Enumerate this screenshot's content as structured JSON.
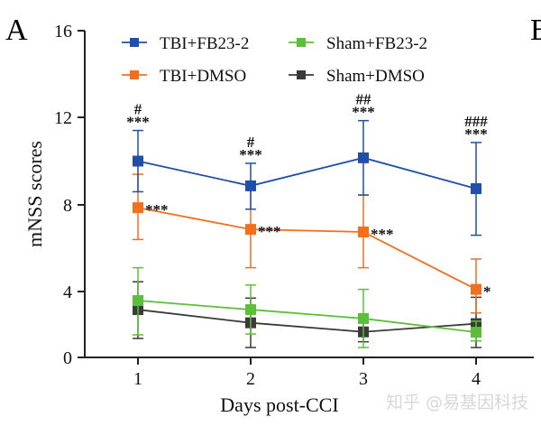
{
  "panel_label": "A",
  "next_panel_label": "B",
  "watermark": "知乎 @易基因科技",
  "chart_data": {
    "type": "line",
    "title": "",
    "xlabel": "Days post-CCI",
    "ylabel": "mNSS scores",
    "x": [
      1,
      2,
      3,
      4
    ],
    "x_tick_labels": [
      "1",
      "2",
      "3",
      "4"
    ],
    "y_ticks": [
      0,
      4,
      8,
      12,
      16
    ],
    "y_tick_labels": [
      "0",
      "4",
      "8",
      "12",
      "16"
    ],
    "ylim": [
      0,
      16
    ],
    "grid": false,
    "legend_placement": "top",
    "series": [
      {
        "name": "TBI+FB23-2",
        "color": "#1f4fa8",
        "values": [
          10.0,
          8.87,
          10.15,
          8.74
        ],
        "err_upper": [
          11.4,
          9.9,
          11.85,
          10.85
        ],
        "err_lower": [
          8.6,
          7.8,
          8.45,
          6.6
        ],
        "annotations": [
          [
            "#",
            "***"
          ],
          [
            "#",
            "***"
          ],
          [
            "##",
            "***"
          ],
          [
            "###",
            "***"
          ]
        ]
      },
      {
        "name": "TBI+DMSO",
        "color": "#f07020",
        "values": [
          7.87,
          6.87,
          6.75,
          4.1
        ],
        "err_upper": [
          9.4,
          8.9,
          8.45,
          5.5
        ],
        "err_lower": [
          6.4,
          5.1,
          5.1,
          2.7
        ],
        "annotations": [
          "***",
          "***",
          "***",
          "*"
        ]
      },
      {
        "name": "Sham+FB23-2",
        "color": "#5cbf3a",
        "values": [
          3.45,
          2.9,
          2.36,
          1.53
        ],
        "err_upper": [
          5.1,
          4.3,
          4.1,
          2.2
        ],
        "err_lower": [
          1.37,
          1.42,
          0.6,
          1.0
        ]
      },
      {
        "name": "Sham+DMSO",
        "color": "#3a3a3a",
        "values": [
          2.9,
          2.1,
          1.55,
          2.05
        ],
        "err_upper": [
          4.45,
          3.6,
          2.15,
          3.65
        ],
        "err_lower": [
          1.15,
          0.6,
          0.95,
          0.6
        ]
      }
    ]
  }
}
